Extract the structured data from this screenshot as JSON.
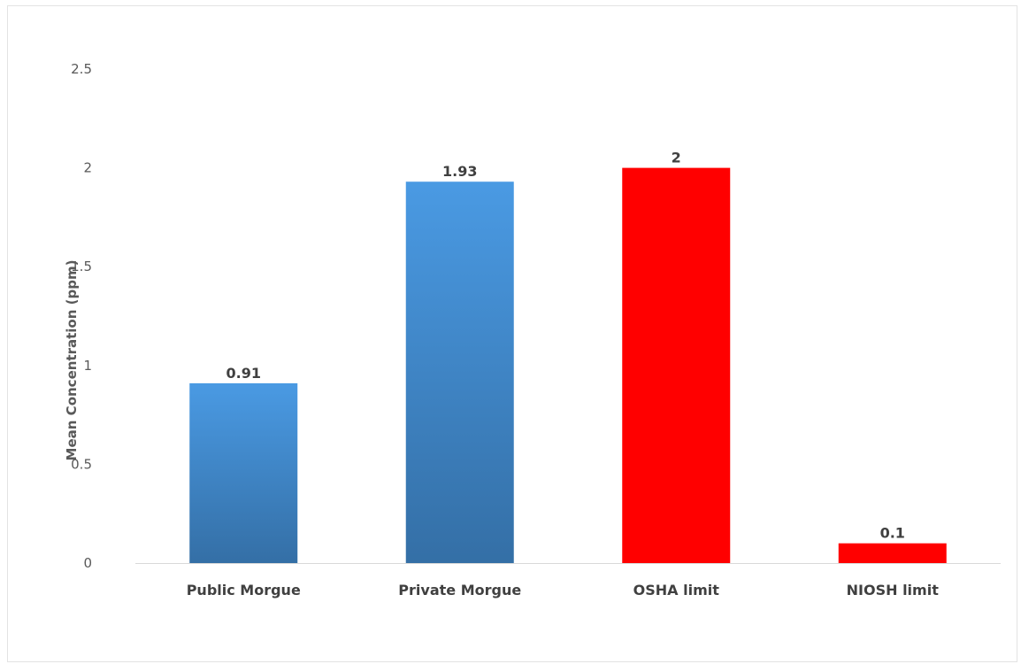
{
  "chart_data": {
    "type": "bar",
    "title": "",
    "xlabel": "",
    "ylabel": "Mean Concentration (ppm)",
    "categories": [
      "Public Morgue",
      "Private Morgue",
      "OSHA limit",
      "NIOSH limit"
    ],
    "values": [
      0.91,
      1.93,
      2,
      0.1
    ],
    "value_labels": [
      "0.91",
      "1.93",
      "2",
      "0.1"
    ],
    "bar_colors": [
      "#3f8fd8",
      "#3f8fd8",
      "#ff0000",
      "#ff0000"
    ],
    "y_ticks": [
      "0",
      "0.5",
      "1",
      "1.5",
      "2",
      "2.5"
    ],
    "ylim": [
      0,
      2.5
    ],
    "grid": false,
    "legend": "none"
  }
}
